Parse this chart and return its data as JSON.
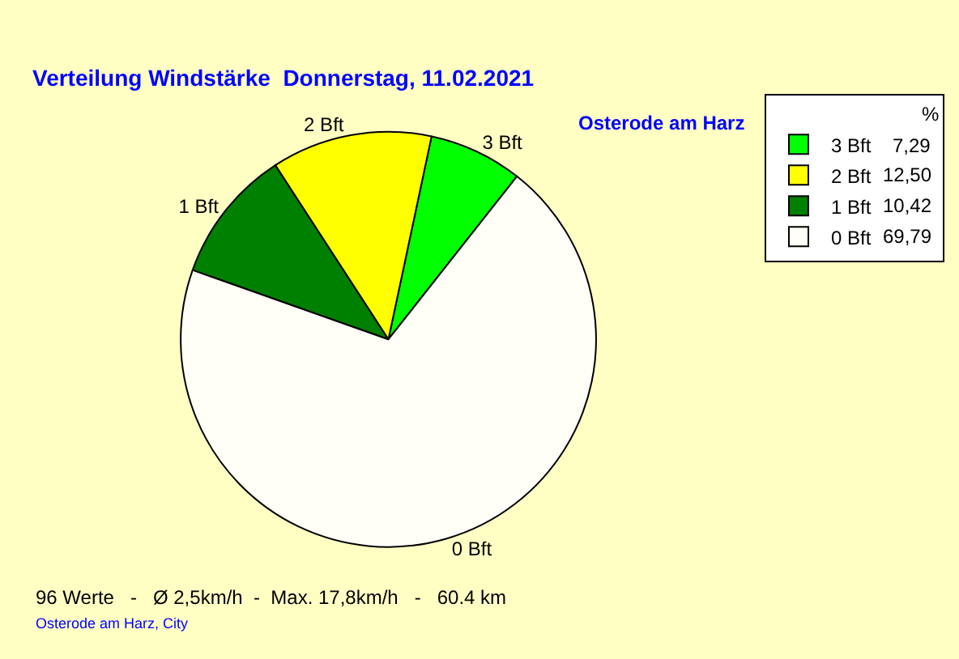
{
  "chart_data": {
    "type": "pie",
    "title": "Verteilung Windstärke  Donnerstag, 11.02.2021",
    "subtitle": "Osterode am Harz",
    "categories": [
      "3 Bft",
      "2 Bft",
      "1 Bft",
      "0 Bft"
    ],
    "values": [
      7.29,
      12.5,
      10.42,
      69.79
    ],
    "value_labels": [
      "7,29",
      "12,50",
      "10,42",
      "69,79"
    ],
    "colors": [
      "#00ff00",
      "#ffff00",
      "#008000",
      "#fffff8"
    ],
    "legend": "top right",
    "legend_title": "%",
    "annotations": [
      "96 Werte   -   Ø 2,5km/h  -  Max. 17,8km/h   -   60.4 km",
      "Osterode am Harz, City"
    ]
  }
}
